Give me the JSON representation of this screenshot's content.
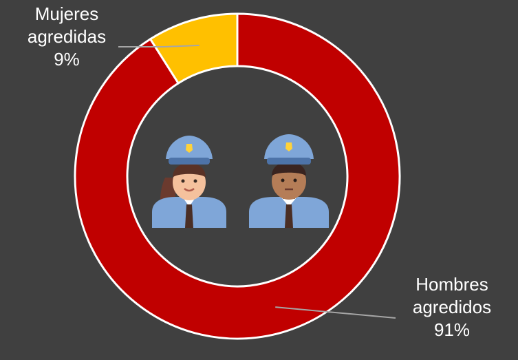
{
  "chart_data": {
    "type": "pie",
    "variant": "donut",
    "title": "",
    "slices": [
      {
        "label_line1": "Hombres",
        "label_line2": "agredidos",
        "value": 91,
        "value_text": "91%",
        "color": "#c00000"
      },
      {
        "label_line1": "Mujeres",
        "label_line2": "agredidas",
        "value": 9,
        "value_text": "9%",
        "color": "#ffc000"
      }
    ],
    "legend": "none",
    "labels_position": "outside-with-leader-lines",
    "center_icons": [
      "police-woman-icon",
      "police-man-icon"
    ]
  },
  "colors": {
    "background": "#404040",
    "slice_border": "#ffffff",
    "leader_line": "#a6a6a6",
    "label_text": "#ffffff"
  }
}
